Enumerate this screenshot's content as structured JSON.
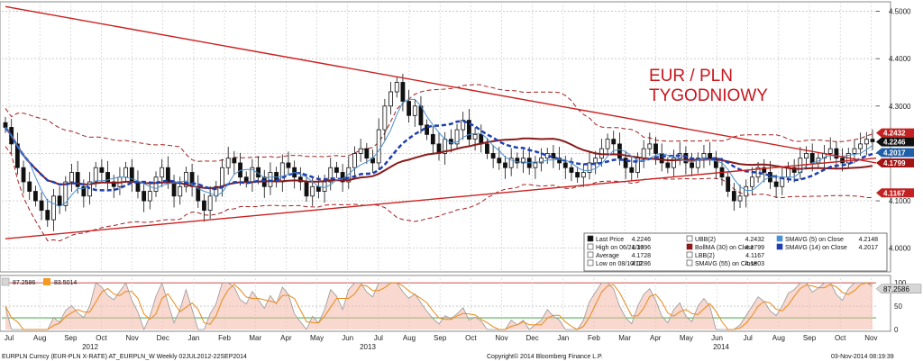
{
  "chart_data": {
    "type": "candlestick",
    "title": "EUR / PLN",
    "subtitle": "TYGODNIOWY",
    "x_month_labels": [
      "Jul",
      "Aug",
      "Sep",
      "Oct",
      "Nov",
      "Dec",
      "Jan",
      "Feb",
      "Mar",
      "Apr",
      "May",
      "Jun",
      "Jul",
      "Aug",
      "Sep",
      "Oct",
      "Nov",
      "Dec",
      "Jan",
      "Feb",
      "Mar",
      "Apr",
      "May",
      "Jun",
      "Jul",
      "Aug",
      "Sep",
      "Oct",
      "Nov"
    ],
    "x_year_labels": [
      "2012",
      "2013",
      "2014"
    ],
    "y_ticks": [
      "4.5000",
      "4.4000",
      "4.3000",
      "4.2000",
      "4.1000",
      "4.0000"
    ],
    "ylim": [
      3.95,
      4.52
    ],
    "price_flags": [
      {
        "value": "4.2432",
        "color": "#c22222"
      },
      {
        "value": "4.2246",
        "color": "#111111"
      },
      {
        "value": "4.2017",
        "color": "#1f5fa8"
      },
      {
        "value": "4.1799",
        "color": "#a31515"
      },
      {
        "value": "4.1167",
        "color": "#c22222"
      }
    ],
    "close_prices": [
      4.255,
      4.22,
      4.17,
      4.14,
      4.12,
      4.1,
      4.08,
      4.06,
      4.11,
      4.09,
      4.14,
      4.16,
      4.13,
      4.11,
      4.14,
      4.17,
      4.16,
      4.14,
      4.13,
      4.15,
      4.17,
      4.14,
      4.12,
      4.1,
      4.12,
      4.15,
      4.17,
      4.14,
      4.11,
      4.13,
      4.16,
      4.13,
      4.1,
      4.08,
      4.11,
      4.13,
      4.17,
      4.19,
      4.18,
      4.15,
      4.14,
      4.17,
      4.15,
      4.13,
      4.16,
      4.14,
      4.18,
      4.17,
      4.15,
      4.14,
      4.11,
      4.13,
      4.12,
      4.14,
      4.17,
      4.16,
      4.14,
      4.17,
      4.2,
      4.21,
      4.19,
      4.18,
      4.25,
      4.3,
      4.33,
      4.35,
      4.31,
      4.28,
      4.3,
      4.26,
      4.24,
      4.22,
      4.2,
      4.23,
      4.22,
      4.25,
      4.27,
      4.23,
      4.24,
      4.22,
      4.2,
      4.19,
      4.18,
      4.17,
      4.19,
      4.18,
      4.19,
      4.17,
      4.18,
      4.19,
      4.2,
      4.19,
      4.18,
      4.17,
      4.16,
      4.15,
      4.16,
      4.18,
      4.19,
      4.21,
      4.23,
      4.22,
      4.19,
      4.17,
      4.16,
      4.19,
      4.21,
      4.22,
      4.2,
      4.18,
      4.17,
      4.19,
      4.2,
      4.18,
      4.17,
      4.19,
      4.2,
      4.19,
      4.17,
      4.15,
      4.12,
      4.1,
      4.11,
      4.13,
      4.15,
      4.17,
      4.16,
      4.14,
      4.13,
      4.15,
      4.17,
      4.16,
      4.19,
      4.2,
      4.18,
      4.19,
      4.2,
      4.21,
      4.19,
      4.18,
      4.2,
      4.21,
      4.22,
      4.23,
      4.2246
    ],
    "legend": {
      "rows": [
        [
          {
            "icon": "candle",
            "label": "Last Price",
            "value": "4.2246"
          },
          {
            "icon": "box",
            "label": "UBB(2)",
            "value": "4.2432"
          },
          {
            "icon": "blue-light",
            "label": "SMAVG (5) on Close",
            "value": "4.2148"
          }
        ],
        [
          {
            "icon": "hl",
            "label": "High on 06/21/13",
            "value": "4.3696"
          },
          {
            "icon": "maroon",
            "label": "BollMA (30) on Close",
            "value": "4.1799"
          },
          {
            "icon": "blue-dark",
            "label": "SMAVG (14) on Close",
            "value": "4.2017"
          }
        ],
        [
          {
            "icon": "avg",
            "label": "Average",
            "value": "4.1728"
          },
          {
            "icon": "box",
            "label": "LBB(2)",
            "value": "4.1167"
          }
        ],
        [
          {
            "icon": "low",
            "label": "Low on 08/10/12",
            "value": "4.0286"
          },
          {
            "icon": "dash",
            "label": "SMAVG (55) on Close",
            "value": "4.1803"
          }
        ]
      ]
    },
    "indicator": {
      "values": [
        "87.2586",
        "83.5014"
      ],
      "y_ticks": [
        "100",
        "50",
        "0"
      ],
      "flag": "87.2586"
    },
    "footer": {
      "left": "EURPLN Curncy (EUR-PLN X-RATE) AT_EURPLN_W  Weekly 02JUL2012-22SEP2014",
      "center": "Copyright© 2014 Bloomberg Finance L.P.",
      "right": "03-Nov-2014 08:19:39"
    }
  }
}
